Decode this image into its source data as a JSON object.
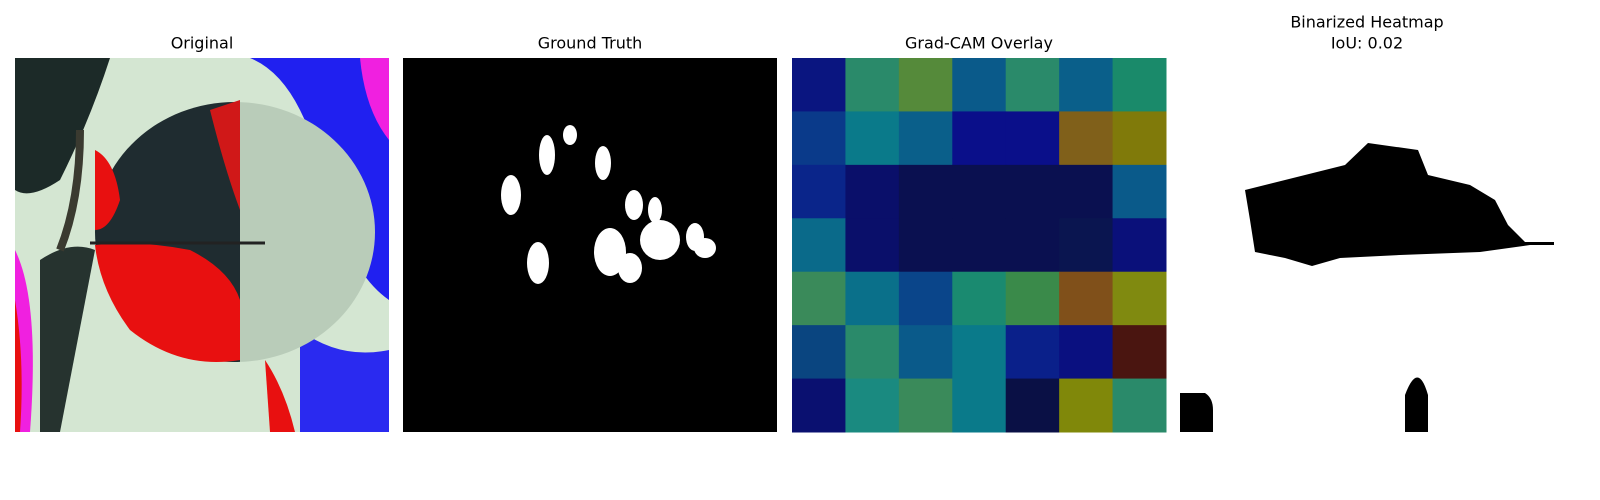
{
  "panels": [
    {
      "title": "Original"
    },
    {
      "title": "Ground Truth"
    },
    {
      "title": "Grad-CAM Overlay"
    },
    {
      "title": "Binarized Heatmap",
      "subtitle": "IoU: 0.02"
    }
  ]
}
